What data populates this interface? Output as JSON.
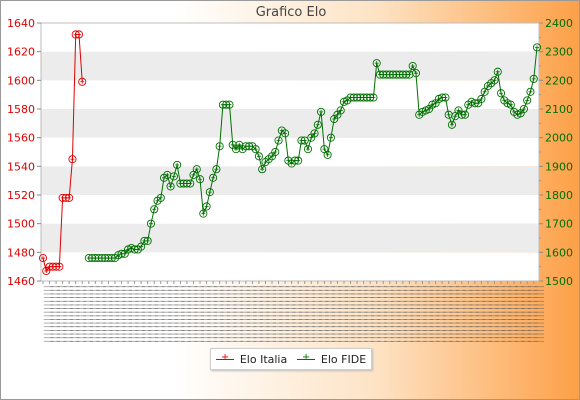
{
  "chart_data": {
    "type": "line",
    "title": "Grafico Elo",
    "xlabel": "",
    "y_left": {
      "ylim": [
        1460,
        1640
      ],
      "ticks": [
        1460,
        1480,
        1500,
        1520,
        1540,
        1560,
        1580,
        1600,
        1620,
        1640
      ],
      "color": "#e00000"
    },
    "y_right": {
      "ylim": [
        1500,
        2400
      ],
      "ticks": [
        1500,
        1600,
        1700,
        1800,
        1900,
        2000,
        2100,
        2200,
        2300,
        2400
      ],
      "color": "#007000"
    },
    "grid": "horizontal-bands",
    "legend_position": "bottom",
    "n_x": 152,
    "series": [
      {
        "name": "Elo Italia",
        "axis": "left",
        "color": "#e00000",
        "points": [
          [
            0,
            1476
          ],
          [
            1,
            1467
          ],
          [
            2,
            1470
          ],
          [
            3,
            1470
          ],
          [
            4,
            1470
          ],
          [
            5,
            1470
          ],
          [
            6,
            1518
          ],
          [
            7,
            1518
          ],
          [
            8,
            1518
          ],
          [
            9,
            1545
          ],
          [
            10,
            1632
          ],
          [
            11,
            1632
          ],
          [
            12,
            1599
          ]
        ]
      },
      {
        "name": "Elo FIDE",
        "axis": "right",
        "color": "#007000",
        "points": [
          [
            14,
            1580
          ],
          [
            15,
            1580
          ],
          [
            16,
            1580
          ],
          [
            17,
            1580
          ],
          [
            18,
            1580
          ],
          [
            19,
            1580
          ],
          [
            20,
            1580
          ],
          [
            21,
            1580
          ],
          [
            22,
            1580
          ],
          [
            23,
            1590
          ],
          [
            24,
            1595
          ],
          [
            25,
            1595
          ],
          [
            26,
            1610
          ],
          [
            27,
            1615
          ],
          [
            28,
            1610
          ],
          [
            29,
            1610
          ],
          [
            30,
            1620
          ],
          [
            31,
            1640
          ],
          [
            32,
            1640
          ],
          [
            33,
            1700
          ],
          [
            34,
            1750
          ],
          [
            35,
            1780
          ],
          [
            36,
            1790
          ],
          [
            37,
            1860
          ],
          [
            38,
            1870
          ],
          [
            39,
            1830
          ],
          [
            40,
            1865
          ],
          [
            41,
            1905
          ],
          [
            42,
            1840
          ],
          [
            43,
            1840
          ],
          [
            44,
            1840
          ],
          [
            45,
            1840
          ],
          [
            46,
            1870
          ],
          [
            47,
            1890
          ],
          [
            48,
            1855
          ],
          [
            49,
            1735
          ],
          [
            50,
            1760
          ],
          [
            51,
            1810
          ],
          [
            52,
            1860
          ],
          [
            53,
            1890
          ],
          [
            54,
            1970
          ],
          [
            55,
            2115
          ],
          [
            56,
            2115
          ],
          [
            57,
            2115
          ],
          [
            58,
            1975
          ],
          [
            59,
            1960
          ],
          [
            60,
            1975
          ],
          [
            61,
            1960
          ],
          [
            62,
            1970
          ],
          [
            63,
            1970
          ],
          [
            64,
            1970
          ],
          [
            65,
            1960
          ],
          [
            66,
            1935
          ],
          [
            67,
            1890
          ],
          [
            68,
            1915
          ],
          [
            69,
            1925
          ],
          [
            70,
            1935
          ],
          [
            71,
            1950
          ],
          [
            72,
            1990
          ],
          [
            73,
            2025
          ],
          [
            74,
            2015
          ],
          [
            75,
            1920
          ],
          [
            76,
            1910
          ],
          [
            77,
            1920
          ],
          [
            78,
            1920
          ],
          [
            79,
            1990
          ],
          [
            80,
            1990
          ],
          [
            81,
            1960
          ],
          [
            82,
            2000
          ],
          [
            83,
            2015
          ],
          [
            84,
            2045
          ],
          [
            85,
            2090
          ],
          [
            86,
            1960
          ],
          [
            87,
            1940
          ],
          [
            88,
            2000
          ],
          [
            89,
            2065
          ],
          [
            90,
            2080
          ],
          [
            91,
            2095
          ],
          [
            92,
            2125
          ],
          [
            93,
            2130
          ],
          [
            94,
            2140
          ],
          [
            95,
            2140
          ],
          [
            96,
            2140
          ],
          [
            97,
            2140
          ],
          [
            98,
            2140
          ],
          [
            99,
            2140
          ],
          [
            100,
            2140
          ],
          [
            101,
            2140
          ],
          [
            102,
            2260
          ],
          [
            103,
            2220
          ],
          [
            104,
            2220
          ],
          [
            105,
            2220
          ],
          [
            106,
            2220
          ],
          [
            107,
            2220
          ],
          [
            108,
            2220
          ],
          [
            109,
            2220
          ],
          [
            110,
            2220
          ],
          [
            111,
            2220
          ],
          [
            112,
            2220
          ],
          [
            113,
            2250
          ],
          [
            114,
            2225
          ],
          [
            115,
            2080
          ],
          [
            116,
            2090
          ],
          [
            117,
            2095
          ],
          [
            118,
            2100
          ],
          [
            119,
            2115
          ],
          [
            120,
            2120
          ],
          [
            121,
            2135
          ],
          [
            122,
            2140
          ],
          [
            123,
            2140
          ],
          [
            124,
            2080
          ],
          [
            125,
            2045
          ],
          [
            126,
            2075
          ],
          [
            127,
            2095
          ],
          [
            128,
            2080
          ],
          [
            129,
            2080
          ],
          [
            130,
            2115
          ],
          [
            131,
            2125
          ],
          [
            132,
            2120
          ],
          [
            133,
            2120
          ],
          [
            134,
            2135
          ],
          [
            135,
            2160
          ],
          [
            136,
            2180
          ],
          [
            137,
            2190
          ],
          [
            138,
            2200
          ],
          [
            139,
            2230
          ],
          [
            140,
            2155
          ],
          [
            141,
            2130
          ],
          [
            142,
            2120
          ],
          [
            143,
            2115
          ],
          [
            144,
            2090
          ],
          [
            145,
            2080
          ],
          [
            146,
            2085
          ],
          [
            147,
            2100
          ],
          [
            148,
            2130
          ],
          [
            149,
            2160
          ],
          [
            150,
            2205
          ],
          [
            151,
            2315
          ]
        ]
      }
    ],
    "x_ticks_note": "rotated date labels, unreadable"
  }
}
